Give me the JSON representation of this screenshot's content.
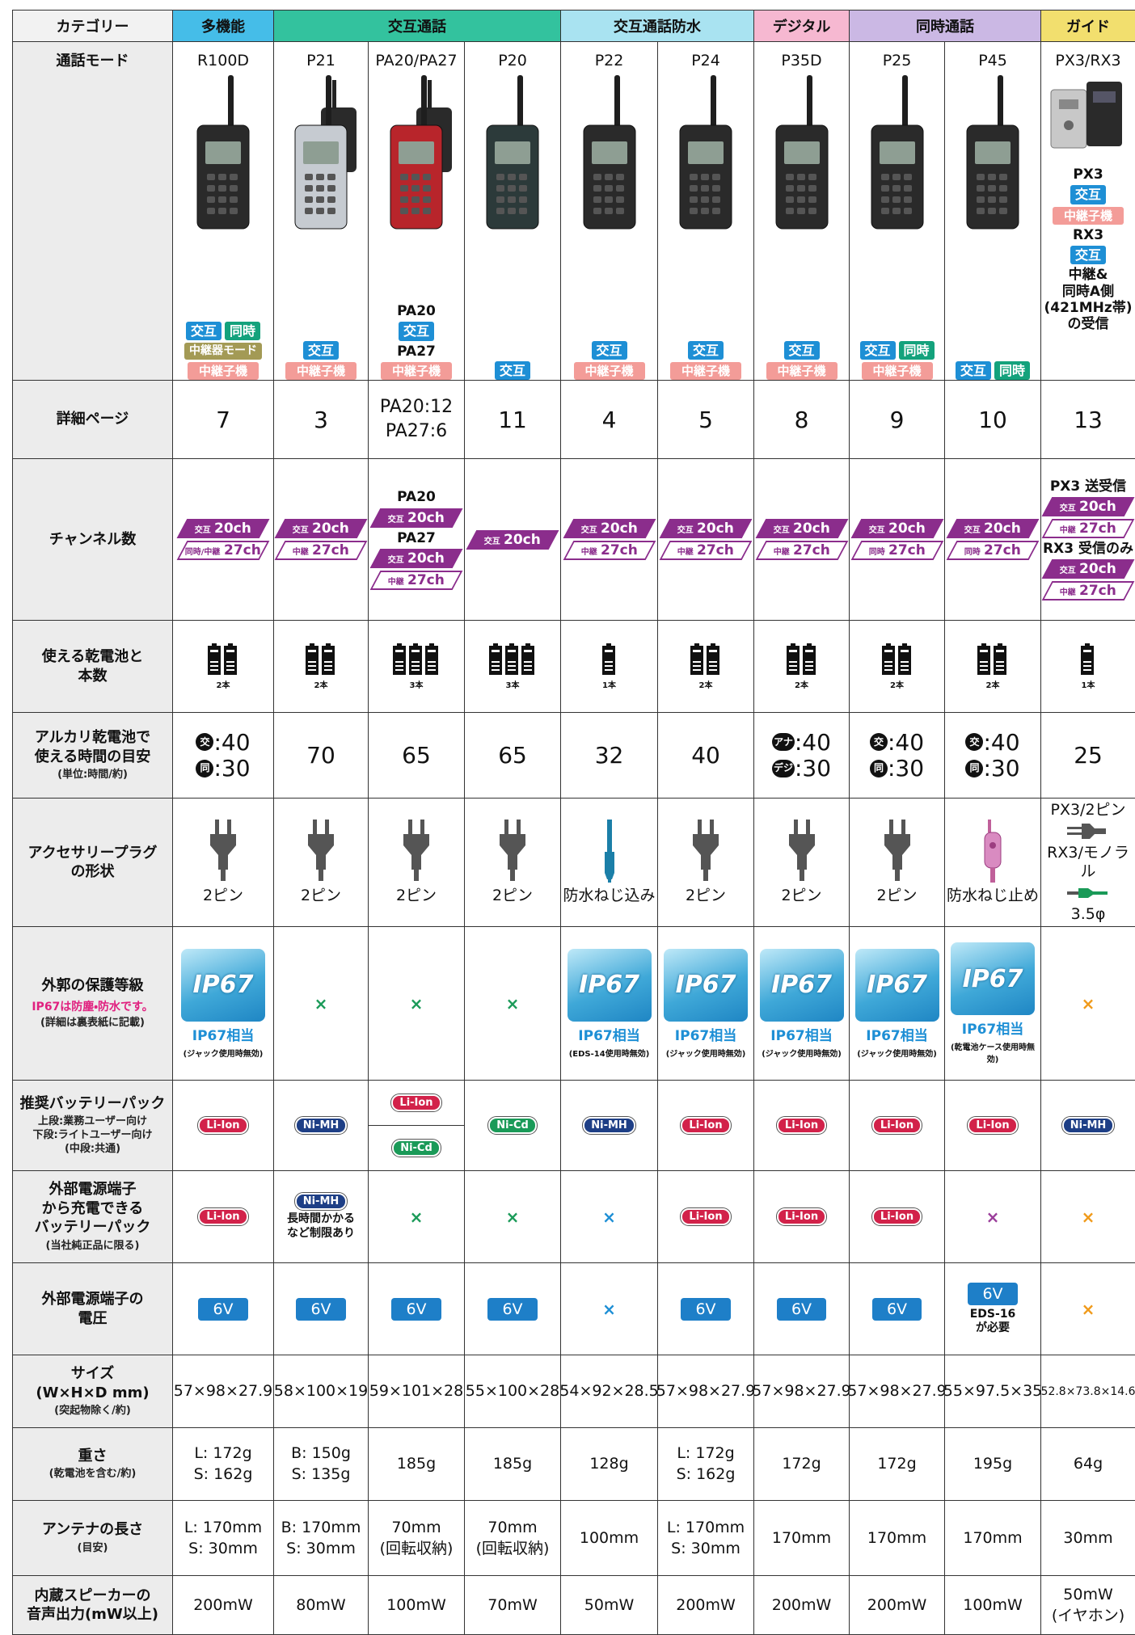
{
  "header": {
    "category": "カテゴリー",
    "groups": [
      "多機能",
      "交互通話",
      "交互通話防水",
      "デジタル",
      "同時通話",
      "ガイド"
    ]
  },
  "rows": {
    "mode": "通話モード",
    "page": "詳細ページ",
    "channels": "チャンネル数",
    "batteries": "使える乾電池と\n本数",
    "hours": {
      "title": "アルカリ乾電池で\n使える時間の目安",
      "note": "(単位:時間/約)"
    },
    "plug": "アクセサリープラグ\nの形状",
    "ip": {
      "title": "外郭の保護等級",
      "note1": "IP67は防塵・防水です。",
      "note": "(詳細は裏表紙に記載)"
    },
    "pack": {
      "title": "推奨バッテリーパック",
      "note": "上段:業務ユーザー向け\n下段:ライトユーザー向け\n(中段:共通)"
    },
    "charge": {
      "title": "外部電源端子\nから充電できる\nバッテリーパック",
      "note": "(当社純正品に限る)"
    },
    "voltage": "外部電源端子の\n電圧",
    "size": {
      "title": "サイズ\n(W×H×D mm)",
      "note": "(突起物除く/約)"
    },
    "weight": {
      "title": "重さ",
      "note": "(乾電池を含む/約)"
    },
    "antenna": {
      "title": "アンテナの長さ",
      "note": "(目安)"
    },
    "speaker": "内蔵スピーカーの\n音声出力(mW以上)"
  },
  "models": [
    {
      "name": "R100D",
      "cells": {
        "mode": [
          {
            "row": [
              {
                "b_blue": "交互"
              },
              {
                "b_green": "同時"
              }
            ]
          },
          {
            "b_olive": "中継器モード"
          },
          {
            "b_pink": "中継子機"
          }
        ],
        "page": [
          {
            "big": "7"
          }
        ],
        "channels": [
          {
            "ch_fill": [
              "交互",
              "20ch"
            ]
          },
          {
            "ch_line": [
              "同時/中継",
              "27ch"
            ]
          }
        ],
        "batteries": [
          {
            "bat": {
              "count": 2,
              "label": "2本"
            }
          }
        ],
        "hours": [
          {
            "hr": [
              "交",
              ":40"
            ]
          },
          {
            "hr": [
              "同",
              ":30"
            ]
          }
        ],
        "plug": [
          {
            "plug_pin": "2ピン"
          }
        ],
        "ip": [
          {
            "ip": [
              "IP67",
              "IP67相当",
              "(ジャック使用時無効)"
            ]
          }
        ],
        "pack": [
          {
            "p_red": "Li-Ion"
          }
        ],
        "charge": [
          {
            "p_red": "Li-Ion"
          }
        ],
        "voltage": [
          {
            "volt": "6V"
          }
        ],
        "size": [
          {
            "txt": "57×98×27.9"
          }
        ],
        "weight": [
          {
            "txt": "L: 172g"
          },
          {
            "txt": "S: 162g"
          }
        ],
        "antenna": [
          {
            "txt": "L: 170mm"
          },
          {
            "txt": "S: 30mm"
          }
        ],
        "speaker": [
          {
            "txt": "200mW"
          }
        ]
      }
    },
    {
      "name": "P21",
      "cells": {
        "mode": [
          {
            "b_blue": "交互"
          },
          {
            "b_pink": "中継子機"
          }
        ],
        "page": [
          {
            "big": "3"
          }
        ],
        "channels": [
          {
            "ch_fill": [
              "交互",
              "20ch"
            ]
          },
          {
            "ch_line": [
              "中継",
              "27ch"
            ]
          }
        ],
        "batteries": [
          {
            "bat": {
              "count": 2,
              "label": "2本"
            }
          }
        ],
        "hours": [
          {
            "big": "70"
          }
        ],
        "plug": [
          {
            "plug_pin": "2ピン"
          }
        ],
        "ip": [
          {
            "x_green": "×"
          }
        ],
        "pack": [
          {
            "p_navy": "Ni-MH"
          }
        ],
        "charge": [
          {
            "p_navy": "Ni-MH"
          },
          {
            "small": "長時間かかる\nなど制限あり"
          }
        ],
        "voltage": [
          {
            "volt": "6V"
          }
        ],
        "size": [
          {
            "txt": "58×100×19"
          }
        ],
        "weight": [
          {
            "txt": "B: 150g"
          },
          {
            "txt": "S: 135g"
          }
        ],
        "antenna": [
          {
            "txt": "B: 170mm"
          },
          {
            "txt": "S: 30mm"
          }
        ],
        "speaker": [
          {
            "txt": "80mW"
          }
        ]
      }
    },
    {
      "name": "PA20/PA27",
      "cells": {
        "mode": [
          {
            "txt": "PA20"
          },
          {
            "b_blue": "交互"
          },
          {
            "txt": "PA27"
          },
          {
            "b_pink": "中継子機"
          }
        ],
        "page": [
          {
            "mid": "PA20:12"
          },
          {
            "mid": "PA27:6"
          }
        ],
        "channels": [
          {
            "txt": "PA20"
          },
          {
            "ch_fill": [
              "交互",
              "20ch"
            ]
          },
          {
            "txt": "PA27"
          },
          {
            "ch_fill": [
              "交互",
              "20ch"
            ]
          },
          {
            "ch_line": [
              "中継",
              "27ch"
            ]
          }
        ],
        "batteries": [
          {
            "bat": {
              "count": 3,
              "label": "3本"
            }
          }
        ],
        "hours": [
          {
            "big": "65"
          }
        ],
        "plug": [
          {
            "plug_pin": "2ピン"
          }
        ],
        "ip": [
          {
            "x_green": "×"
          }
        ],
        "pack": [
          {
            "split": [
              [
                {
                  "p_red": "Li-Ion"
                }
              ],
              [
                {
                  "p_green": "Ni-Cd"
                }
              ]
            ]
          }
        ],
        "charge": [
          {
            "x_green": "×"
          }
        ],
        "voltage": [
          {
            "volt": "6V"
          }
        ],
        "size": [
          {
            "txt": "59×101×28"
          }
        ],
        "weight": [
          {
            "txt": "185g"
          }
        ],
        "antenna": [
          {
            "txt": "70mm"
          },
          {
            "txt": "(回転収納)"
          }
        ],
        "speaker": [
          {
            "txt": "100mW"
          }
        ]
      }
    },
    {
      "name": "P20",
      "cells": {
        "mode": [
          {
            "b_blue": "交互"
          }
        ],
        "page": [
          {
            "big": "11"
          }
        ],
        "channels": [
          {
            "ch_fill": [
              "交互",
              "20ch"
            ]
          }
        ],
        "batteries": [
          {
            "bat": {
              "count": 3,
              "label": "3本"
            }
          }
        ],
        "hours": [
          {
            "big": "65"
          }
        ],
        "plug": [
          {
            "plug_pin": "2ピン"
          }
        ],
        "ip": [
          {
            "x_green": "×"
          }
        ],
        "pack": [
          {
            "p_green": "Ni-Cd"
          }
        ],
        "charge": [
          {
            "x_green": "×"
          }
        ],
        "voltage": [
          {
            "volt": "6V"
          }
        ],
        "size": [
          {
            "txt": "55×100×28"
          }
        ],
        "weight": [
          {
            "txt": "185g"
          }
        ],
        "antenna": [
          {
            "txt": "70mm"
          },
          {
            "txt": "(回転収納)"
          }
        ],
        "speaker": [
          {
            "txt": "70mW"
          }
        ]
      }
    },
    {
      "name": "P22",
      "cells": {
        "mode": [
          {
            "b_blue": "交互"
          },
          {
            "b_pink": "中継子機"
          }
        ],
        "page": [
          {
            "big": "4"
          }
        ],
        "channels": [
          {
            "ch_fill": [
              "交互",
              "20ch"
            ]
          },
          {
            "ch_line": [
              "中継",
              "27ch"
            ]
          }
        ],
        "batteries": [
          {
            "bat": {
              "count": 1,
              "label": "1本"
            }
          }
        ],
        "hours": [
          {
            "big": "32"
          }
        ],
        "plug": [
          {
            "plug_water": "防水ねじ込み"
          }
        ],
        "ip": [
          {
            "ip": [
              "IP67",
              "IP67相当",
              "(EDS-14使用時無効)"
            ]
          }
        ],
        "pack": [
          {
            "p_navy": "Ni-MH"
          }
        ],
        "charge": [
          {
            "x_blue": "×"
          }
        ],
        "voltage": [
          {
            "x_blue": "×"
          }
        ],
        "size": [
          {
            "txt": "54×92×28.5"
          }
        ],
        "weight": [
          {
            "txt": "128g"
          }
        ],
        "antenna": [
          {
            "txt": "100mm"
          }
        ],
        "speaker": [
          {
            "txt": "50mW"
          }
        ]
      }
    },
    {
      "name": "P24",
      "cells": {
        "mode": [
          {
            "b_blue": "交互"
          },
          {
            "b_pink": "中継子機"
          }
        ],
        "page": [
          {
            "big": "5"
          }
        ],
        "channels": [
          {
            "ch_fill": [
              "交互",
              "20ch"
            ]
          },
          {
            "ch_line": [
              "中継",
              "27ch"
            ]
          }
        ],
        "batteries": [
          {
            "bat": {
              "count": 2,
              "label": "2本"
            }
          }
        ],
        "hours": [
          {
            "big": "40"
          }
        ],
        "plug": [
          {
            "plug_pin": "2ピン"
          }
        ],
        "ip": [
          {
            "ip": [
              "IP67",
              "IP67相当",
              "(ジャック使用時無効)"
            ]
          }
        ],
        "pack": [
          {
            "p_red": "Li-Ion"
          }
        ],
        "charge": [
          {
            "p_red": "Li-Ion"
          }
        ],
        "voltage": [
          {
            "volt": "6V"
          }
        ],
        "size": [
          {
            "txt": "57×98×27.9"
          }
        ],
        "weight": [
          {
            "txt": "L: 172g"
          },
          {
            "txt": "S: 162g"
          }
        ],
        "antenna": [
          {
            "txt": "L: 170mm"
          },
          {
            "txt": "S: 30mm"
          }
        ],
        "speaker": [
          {
            "txt": "200mW"
          }
        ]
      }
    },
    {
      "name": "P35D",
      "cells": {
        "mode": [
          {
            "b_blue": "交互"
          },
          {
            "b_pink": "中継子機"
          }
        ],
        "page": [
          {
            "big": "8"
          }
        ],
        "channels": [
          {
            "ch_fill": [
              "交互",
              "20ch"
            ]
          },
          {
            "ch_line": [
              "中継",
              "27ch"
            ]
          }
        ],
        "batteries": [
          {
            "bat": {
              "count": 2,
              "label": "2本"
            }
          }
        ],
        "hours": [
          {
            "hr": [
              "アナ",
              ":40"
            ]
          },
          {
            "hr": [
              "デジ",
              ":30"
            ]
          }
        ],
        "plug": [
          {
            "plug_pin": "2ピン"
          }
        ],
        "ip": [
          {
            "ip": [
              "IP67",
              "IP67相当",
              "(ジャック使用時無効)"
            ]
          }
        ],
        "pack": [
          {
            "p_red": "Li-Ion"
          }
        ],
        "charge": [
          {
            "p_red": "Li-Ion"
          }
        ],
        "voltage": [
          {
            "volt": "6V"
          }
        ],
        "size": [
          {
            "txt": "57×98×27.9"
          }
        ],
        "weight": [
          {
            "txt": "172g"
          }
        ],
        "antenna": [
          {
            "txt": "170mm"
          }
        ],
        "speaker": [
          {
            "txt": "200mW"
          }
        ]
      }
    },
    {
      "name": "P25",
      "cells": {
        "mode": [
          {
            "row": [
              {
                "b_blue": "交互"
              },
              {
                "b_green": "同時"
              }
            ]
          },
          {
            "b_pink": "中継子機"
          }
        ],
        "page": [
          {
            "big": "9"
          }
        ],
        "channels": [
          {
            "ch_fill": [
              "交互",
              "20ch"
            ]
          },
          {
            "ch_line": [
              "同時",
              "27ch"
            ]
          }
        ],
        "batteries": [
          {
            "bat": {
              "count": 2,
              "label": "2本"
            }
          }
        ],
        "hours": [
          {
            "hr": [
              "交",
              ":40"
            ]
          },
          {
            "hr": [
              "同",
              ":30"
            ]
          }
        ],
        "plug": [
          {
            "plug_pin": "2ピン"
          }
        ],
        "ip": [
          {
            "ip": [
              "IP67",
              "IP67相当",
              "(ジャック使用時無効)"
            ]
          }
        ],
        "pack": [
          {
            "p_red": "Li-Ion"
          }
        ],
        "charge": [
          {
            "p_red": "Li-Ion"
          }
        ],
        "voltage": [
          {
            "volt": "6V"
          }
        ],
        "size": [
          {
            "txt": "57×98×27.9"
          }
        ],
        "weight": [
          {
            "txt": "172g"
          }
        ],
        "antenna": [
          {
            "txt": "170mm"
          }
        ],
        "speaker": [
          {
            "txt": "200mW"
          }
        ]
      }
    },
    {
      "name": "P45",
      "cells": {
        "mode": [
          {
            "row": [
              {
                "b_blue": "交互"
              },
              {
                "b_green": "同時"
              }
            ]
          }
        ],
        "page": [
          {
            "big": "10"
          }
        ],
        "channels": [
          {
            "ch_fill": [
              "交互",
              "20ch"
            ]
          },
          {
            "ch_line": [
              "同時",
              "27ch"
            ]
          }
        ],
        "batteries": [
          {
            "bat": {
              "count": 2,
              "label": "2本"
            }
          }
        ],
        "hours": [
          {
            "hr": [
              "交",
              ":40"
            ]
          },
          {
            "hr": [
              "同",
              ":30"
            ]
          }
        ],
        "plug": [
          {
            "plug_screw": "防水ねじ止め"
          }
        ],
        "ip": [
          {
            "ip": [
              "IP67",
              "IP67相当",
              "(乾電池ケース使用時無効)"
            ]
          }
        ],
        "pack": [
          {
            "p_red": "Li-Ion"
          }
        ],
        "charge": [
          {
            "x_purple": "×"
          }
        ],
        "voltage": [
          {
            "volt": "6V"
          },
          {
            "small": "EDS-16\nが必要"
          }
        ],
        "size": [
          {
            "txt": "55×97.5×35"
          }
        ],
        "weight": [
          {
            "txt": "195g"
          }
        ],
        "antenna": [
          {
            "txt": "170mm"
          }
        ],
        "speaker": [
          {
            "txt": "100mW"
          }
        ]
      }
    },
    {
      "name": "PX3/RX3",
      "cells": {
        "mode": [
          {
            "txt": "PX3"
          },
          {
            "b_blue": "交互"
          },
          {
            "b_pink": "中継子機"
          },
          {
            "txt": "RX3"
          },
          {
            "b_blue": "交互"
          },
          {
            "txt": "中継&\n同時A側\n(421MHz帯)\nの受信"
          }
        ],
        "page": [
          {
            "big": "13"
          }
        ],
        "channels": [
          {
            "txt": "PX3 送受信"
          },
          {
            "ch_fill": [
              "交互",
              "20ch"
            ]
          },
          {
            "ch_line": [
              "中継",
              "27ch"
            ]
          },
          {
            "txt": "RX3 受信のみ"
          },
          {
            "ch_fill": [
              "交互",
              "20ch"
            ]
          },
          {
            "ch_line": [
              "中継",
              "27ch"
            ]
          }
        ],
        "batteries": [
          {
            "bat": {
              "count": 1,
              "label": "1本"
            }
          }
        ],
        "hours": [
          {
            "big": "25"
          }
        ],
        "plug": [
          {
            "plug_flat": "PX3/2ピン"
          },
          {
            "plug_mono": "RX3/モノラル"
          },
          {
            "txt": "3.5φ"
          }
        ],
        "ip": [
          {
            "x_orange": "×"
          }
        ],
        "pack": [
          {
            "p_navy": "Ni-MH"
          }
        ],
        "charge": [
          {
            "x_orange": "×"
          }
        ],
        "voltage": [
          {
            "x_orange": "×"
          }
        ],
        "size": [
          {
            "tiny": "52.8×73.8×14.6"
          }
        ],
        "weight": [
          {
            "txt": "64g"
          }
        ],
        "antenna": [
          {
            "txt": "30mm"
          }
        ],
        "speaker": [
          {
            "txt": "50mW"
          },
          {
            "txt": "(イヤホン)"
          }
        ]
      }
    }
  ]
}
